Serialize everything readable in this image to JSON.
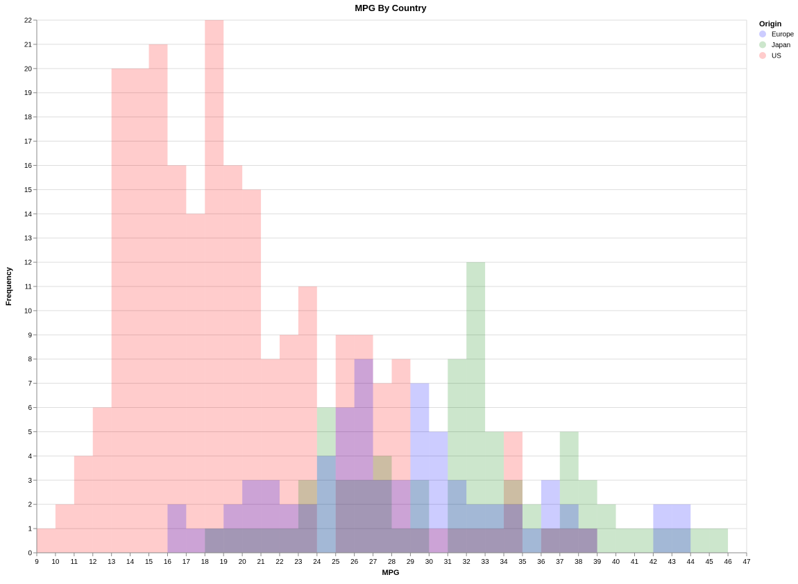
{
  "chart_data": {
    "type": "bar",
    "title": "MPG By Country",
    "xlabel": "MPG",
    "ylabel": "Frequency",
    "xlim": [
      9,
      47
    ],
    "ylim": [
      0,
      22
    ],
    "grid": true,
    "legend": {
      "title": "Origin",
      "placement": "top-right",
      "entries": [
        "Europe",
        "Japan",
        "US"
      ]
    },
    "bin_width": 1,
    "series": [
      {
        "name": "US",
        "color": "#ff0000",
        "opacity": 0.2,
        "bins": [
          [
            9.5,
            1
          ],
          [
            10.5,
            2
          ],
          [
            11.5,
            4
          ],
          [
            12.5,
            6
          ],
          [
            13.5,
            20
          ],
          [
            14.5,
            20
          ],
          [
            15.5,
            21
          ],
          [
            16.5,
            16
          ],
          [
            17.5,
            14
          ],
          [
            18.5,
            22
          ],
          [
            19.5,
            16
          ],
          [
            20.5,
            15
          ],
          [
            21.5,
            8
          ],
          [
            22.5,
            9
          ],
          [
            23.5,
            11
          ],
          [
            25.5,
            9
          ],
          [
            26.5,
            9
          ],
          [
            27.5,
            7
          ],
          [
            28.5,
            8
          ],
          [
            29.5,
            1
          ],
          [
            30.5,
            1
          ],
          [
            31.5,
            1
          ],
          [
            32.5,
            1
          ],
          [
            33.5,
            1
          ],
          [
            34.5,
            5
          ],
          [
            36.5,
            1
          ],
          [
            37.5,
            1
          ],
          [
            38.5,
            1
          ]
        ]
      },
      {
        "name": "Japan",
        "color": "#008000",
        "opacity": 0.2,
        "bins": [
          [
            18.5,
            1
          ],
          [
            19.5,
            1
          ],
          [
            20.5,
            1
          ],
          [
            21.5,
            1
          ],
          [
            22.5,
            1
          ],
          [
            23.5,
            3
          ],
          [
            24.5,
            6
          ],
          [
            25.5,
            3
          ],
          [
            26.5,
            3
          ],
          [
            27.5,
            4
          ],
          [
            28.5,
            1
          ],
          [
            29.5,
            3
          ],
          [
            31.5,
            8
          ],
          [
            32.5,
            12
          ],
          [
            33.5,
            5
          ],
          [
            34.5,
            3
          ],
          [
            35.5,
            2
          ],
          [
            36.5,
            1
          ],
          [
            37.5,
            5
          ],
          [
            38.5,
            3
          ],
          [
            39.5,
            2
          ],
          [
            40.5,
            1
          ],
          [
            41.5,
            1
          ],
          [
            42.5,
            1
          ],
          [
            43.5,
            1
          ],
          [
            44.5,
            1
          ],
          [
            45.5,
            1
          ]
        ]
      },
      {
        "name": "Europe",
        "color": "#0000ff",
        "opacity": 0.2,
        "bins": [
          [
            16.5,
            2
          ],
          [
            17.5,
            1
          ],
          [
            18.5,
            1
          ],
          [
            19.5,
            2
          ],
          [
            20.5,
            3
          ],
          [
            21.5,
            3
          ],
          [
            22.5,
            2
          ],
          [
            23.5,
            2
          ],
          [
            24.5,
            4
          ],
          [
            25.5,
            6
          ],
          [
            26.5,
            8
          ],
          [
            27.5,
            3
          ],
          [
            28.5,
            3
          ],
          [
            29.5,
            7
          ],
          [
            30.5,
            5
          ],
          [
            31.5,
            3
          ],
          [
            32.5,
            2
          ],
          [
            33.5,
            2
          ],
          [
            34.5,
            2
          ],
          [
            35.5,
            1
          ],
          [
            36.5,
            3
          ],
          [
            37.5,
            2
          ],
          [
            38.5,
            1
          ],
          [
            42.5,
            2
          ],
          [
            43.5,
            2
          ]
        ]
      }
    ]
  }
}
